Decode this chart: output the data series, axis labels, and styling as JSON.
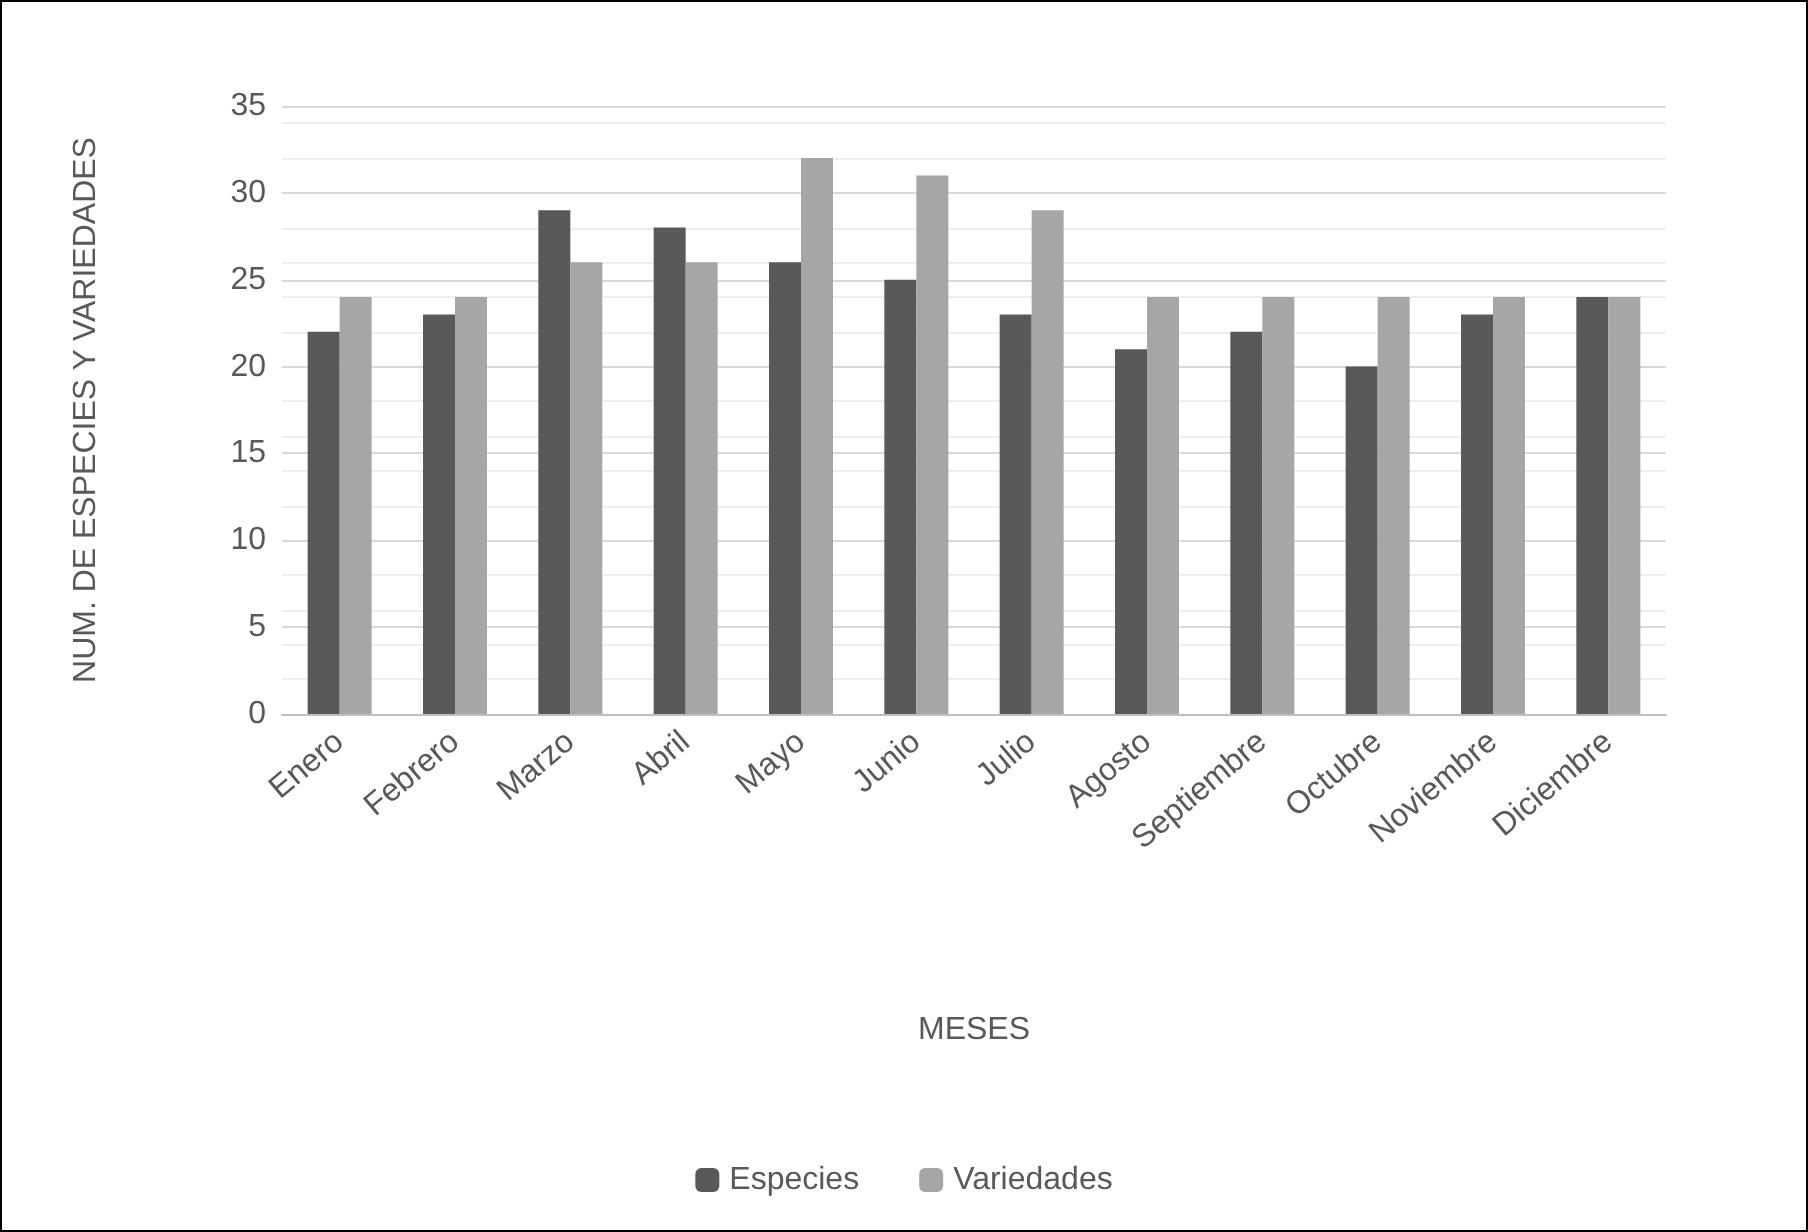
{
  "chart_data": {
    "type": "bar",
    "xlabel": "MESES",
    "ylabel": "NUM. DE ESPECIES Y VARIEDADES",
    "categories": [
      "Enero",
      "Febrero",
      "Marzo",
      "Abril",
      "Mayo",
      "Junio",
      "Julio",
      "Agosto",
      "Septiembre",
      "Octubre",
      "Noviembre",
      "Diciembre"
    ],
    "series": [
      {
        "name": "Especies",
        "color": "#595959",
        "values": [
          22,
          23,
          29,
          28,
          26,
          25,
          23,
          21,
          22,
          20,
          23,
          24
        ]
      },
      {
        "name": "Variedades",
        "color": "#a6a6a6",
        "values": [
          24,
          24,
          26,
          26,
          32,
          31,
          29,
          24,
          24,
          24,
          24,
          24
        ]
      }
    ],
    "ylim": [
      0,
      35
    ],
    "yticks": [
      0,
      5,
      10,
      15,
      20,
      25,
      30,
      35
    ],
    "grid": "y",
    "legend": "bottom"
  }
}
